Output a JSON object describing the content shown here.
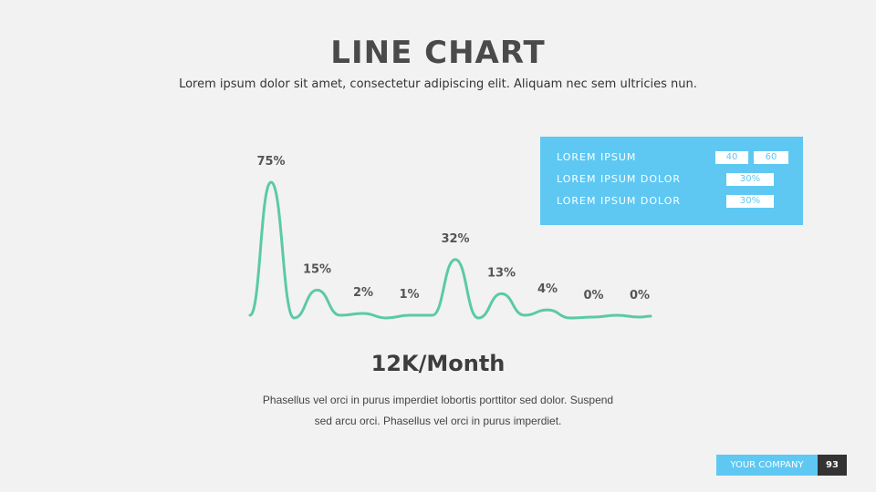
{
  "slide": {
    "title": "LINE CHART",
    "subtitle": "Lorem ipsum dolor sit amet, consectetur adipiscing elit. Aliquam nec sem ultricies nun.",
    "headline": "12K/Month",
    "body_line1": "Phasellus vel orci in purus imperdiet lobortis porttitor sed dolor. Suspend",
    "body_line2": "sed arcu orci. Phasellus vel orci in purus imperdiet."
  },
  "legend": {
    "rows": [
      {
        "label": "LOREM IPSUM",
        "values": [
          "40",
          "60"
        ]
      },
      {
        "label": "LOREM IPSUM DOLOR",
        "values": [
          "30%"
        ]
      },
      {
        "label": "LOREM IPSUM DOLOR",
        "values": [
          "30%"
        ]
      }
    ]
  },
  "footer": {
    "company": "YOUR COMPANY",
    "page": "93"
  },
  "colors": {
    "line": "#5cc9a7",
    "accent": "#5ec8f2",
    "background": "#f2f2f2"
  },
  "chart_data": {
    "type": "line",
    "categories": [
      "",
      "",
      "",
      "",
      "",
      "",
      "",
      "",
      ""
    ],
    "values": [
      75,
      15,
      2,
      1,
      32,
      13,
      4,
      0,
      0
    ],
    "data_labels": [
      "75%",
      "15%",
      "2%",
      "1%",
      "32%",
      "13%",
      "4%",
      "0%",
      "0%"
    ],
    "ylim": [
      0,
      75
    ],
    "grid": false
  }
}
